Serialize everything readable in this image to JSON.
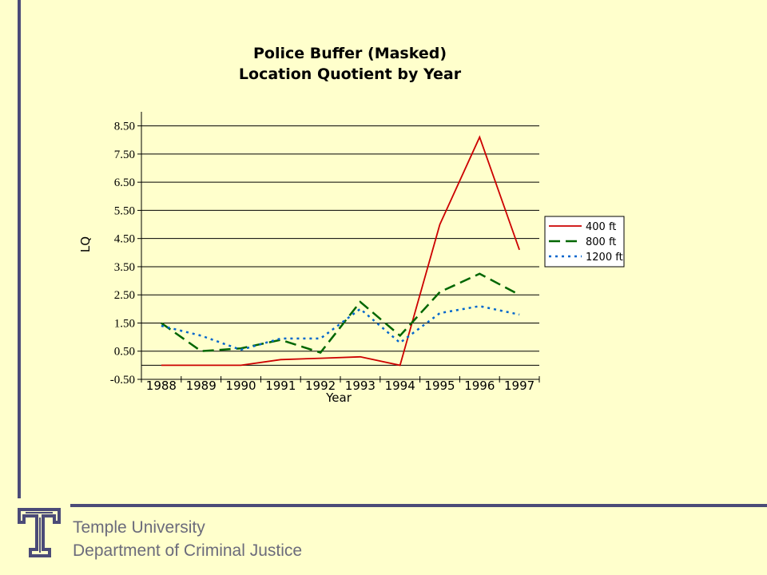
{
  "chart_data": {
    "type": "line",
    "title": [
      "Police Buffer (Masked)",
      "Location Quotient by Year"
    ],
    "xlabel": "Year",
    "ylabel": "LQ",
    "categories": [
      "1988",
      "1989",
      "1990",
      "1991",
      "1992",
      "1993",
      "1994",
      "1995",
      "1996",
      "1997"
    ],
    "y_ticks": [
      "8.50",
      "7.50",
      "6.50",
      "5.50",
      "4.50",
      "3.50",
      "2.50",
      "1.50",
      "0.50",
      "-0.50"
    ],
    "ylim": [
      -0.5,
      9.0
    ],
    "grid": true,
    "legend_position": "right",
    "series": [
      {
        "name": "400 ft",
        "color": "#CC0000",
        "dash": "solid",
        "values": [
          0.0,
          0.0,
          0.0,
          0.2,
          0.25,
          0.3,
          0.0,
          5.0,
          8.1,
          4.1
        ]
      },
      {
        "name": "800 ft",
        "color": "#006600",
        "dash": "long-dash",
        "values": [
          1.5,
          0.5,
          0.6,
          0.9,
          0.45,
          2.25,
          1.05,
          2.6,
          3.25,
          2.5
        ]
      },
      {
        "name": "1200 ft",
        "color": "#0066CC",
        "dash": "dotted",
        "values": [
          1.4,
          1.05,
          0.55,
          0.95,
          0.95,
          2.0,
          0.8,
          1.85,
          2.1,
          1.8
        ]
      }
    ]
  },
  "footer": {
    "university": "Temple University",
    "department": "Department of Criminal Justice"
  },
  "colors": {
    "background": "#FFFFCC",
    "accent_bar": "#4B4B78",
    "footer_text": "#6B6B7B"
  }
}
